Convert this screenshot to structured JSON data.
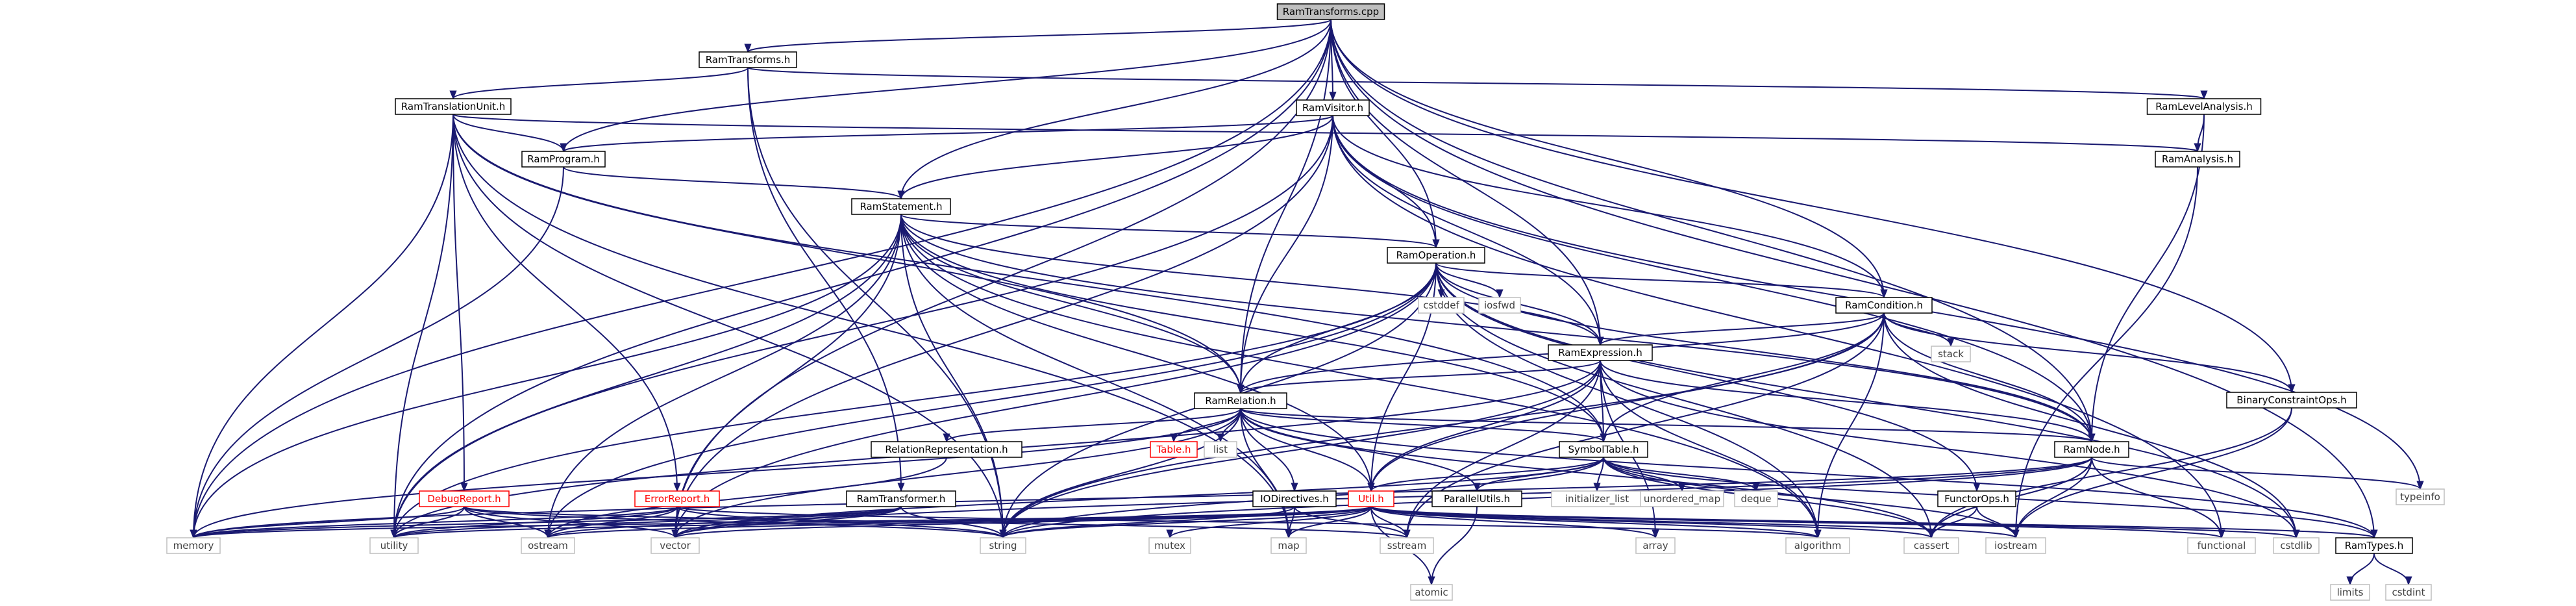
{
  "diagram": {
    "colors": {
      "edge": "#191970",
      "root_fill": "#bfbfbf",
      "doc_border": "#000000",
      "missing_border": "#ff0000",
      "system_border": "#bfbfbf"
    },
    "nodes": [
      {
        "id": "root",
        "label": "RamTransforms.cpp",
        "kind": "root"
      },
      {
        "id": "ramtransforms_h",
        "label": "RamTransforms.h",
        "kind": "doc"
      },
      {
        "id": "ramtranslationunit",
        "label": "RamTranslationUnit.h",
        "kind": "doc"
      },
      {
        "id": "ramvisitor",
        "label": "RamVisitor.h",
        "kind": "doc"
      },
      {
        "id": "ramlevelanalysis",
        "label": "RamLevelAnalysis.h",
        "kind": "doc"
      },
      {
        "id": "ramanalysis",
        "label": "RamAnalysis.h",
        "kind": "doc"
      },
      {
        "id": "ramprogram",
        "label": "RamProgram.h",
        "kind": "doc"
      },
      {
        "id": "ramstatement",
        "label": "RamStatement.h",
        "kind": "doc"
      },
      {
        "id": "ramoperation",
        "label": "RamOperation.h",
        "kind": "doc"
      },
      {
        "id": "cstddef",
        "label": "cstddef",
        "kind": "sys"
      },
      {
        "id": "iosfwd",
        "label": "iosfwd",
        "kind": "sys"
      },
      {
        "id": "ramcondition",
        "label": "RamCondition.h",
        "kind": "doc"
      },
      {
        "id": "stack",
        "label": "stack",
        "kind": "sys"
      },
      {
        "id": "ramexpression",
        "label": "RamExpression.h",
        "kind": "doc"
      },
      {
        "id": "binaryconstraintops",
        "label": "BinaryConstraintOps.h",
        "kind": "doc"
      },
      {
        "id": "ramrelation",
        "label": "RamRelation.h",
        "kind": "doc"
      },
      {
        "id": "symboltable",
        "label": "SymbolTable.h",
        "kind": "doc"
      },
      {
        "id": "ramnode",
        "label": "RamNode.h",
        "kind": "doc"
      },
      {
        "id": "typeinfo",
        "label": "typeinfo",
        "kind": "sys"
      },
      {
        "id": "relationrep",
        "label": "RelationRepresentation.h",
        "kind": "doc"
      },
      {
        "id": "table_h",
        "label": "Table.h",
        "kind": "red"
      },
      {
        "id": "list",
        "label": "list",
        "kind": "sys"
      },
      {
        "id": "iodirectives",
        "label": "IODirectives.h",
        "kind": "doc"
      },
      {
        "id": "util",
        "label": "Util.h",
        "kind": "red"
      },
      {
        "id": "parallelutils",
        "label": "ParallelUtils.h",
        "kind": "doc"
      },
      {
        "id": "initializer_list",
        "label": "initializer_list",
        "kind": "sys"
      },
      {
        "id": "unordered_map",
        "label": "unordered_map",
        "kind": "sys"
      },
      {
        "id": "deque",
        "label": "deque",
        "kind": "sys"
      },
      {
        "id": "functorops",
        "label": "FunctorOps.h",
        "kind": "doc"
      },
      {
        "id": "debugreport",
        "label": "DebugReport.h",
        "kind": "red"
      },
      {
        "id": "errorreport",
        "label": "ErrorReport.h",
        "kind": "red"
      },
      {
        "id": "ramtransformer",
        "label": "RamTransformer.h",
        "kind": "doc"
      },
      {
        "id": "ramtypes",
        "label": "RamTypes.h",
        "kind": "doc"
      },
      {
        "id": "limits",
        "label": "limits",
        "kind": "sys"
      },
      {
        "id": "cstdint",
        "label": "cstdint",
        "kind": "sys"
      },
      {
        "id": "memory",
        "label": "memory",
        "kind": "sys"
      },
      {
        "id": "utility",
        "label": "utility",
        "kind": "sys"
      },
      {
        "id": "ostream",
        "label": "ostream",
        "kind": "sys"
      },
      {
        "id": "vector",
        "label": "vector",
        "kind": "sys"
      },
      {
        "id": "string",
        "label": "string",
        "kind": "sys"
      },
      {
        "id": "mutex",
        "label": "mutex",
        "kind": "sys"
      },
      {
        "id": "map",
        "label": "map",
        "kind": "sys"
      },
      {
        "id": "sstream",
        "label": "sstream",
        "kind": "sys"
      },
      {
        "id": "atomic",
        "label": "atomic",
        "kind": "sys"
      },
      {
        "id": "array",
        "label": "array",
        "kind": "sys"
      },
      {
        "id": "algorithm",
        "label": "algorithm",
        "kind": "sys"
      },
      {
        "id": "cassert",
        "label": "cassert",
        "kind": "sys"
      },
      {
        "id": "iostream",
        "label": "iostream",
        "kind": "sys"
      },
      {
        "id": "functional",
        "label": "functional",
        "kind": "sys"
      },
      {
        "id": "cstdlib",
        "label": "cstdlib",
        "kind": "sys"
      }
    ],
    "edges": [
      [
        "root",
        "ramtransforms_h"
      ],
      [
        "root",
        "ramvisitor"
      ],
      [
        "root",
        "ramprogram"
      ],
      [
        "root",
        "ramstatement"
      ],
      [
        "root",
        "ramoperation"
      ],
      [
        "root",
        "ramcondition"
      ],
      [
        "root",
        "ramexpression"
      ],
      [
        "root",
        "ramrelation"
      ],
      [
        "root",
        "binaryconstraintops"
      ],
      [
        "root",
        "ramnode"
      ],
      [
        "root",
        "ramtypes"
      ],
      [
        "root",
        "utility"
      ],
      [
        "root",
        "vector"
      ],
      [
        "root",
        "memory"
      ],
      [
        "ramtransforms_h",
        "ramtranslationunit"
      ],
      [
        "ramtransforms_h",
        "ramlevelanalysis"
      ],
      [
        "ramtransforms_h",
        "ramtransformer"
      ],
      [
        "ramtransforms_h",
        "string"
      ],
      [
        "ramtranslationunit",
        "ramanalysis"
      ],
      [
        "ramtranslationunit",
        "ramprogram"
      ],
      [
        "ramtranslationunit",
        "debugreport"
      ],
      [
        "ramtranslationunit",
        "errorreport"
      ],
      [
        "ramtranslationunit",
        "symboltable"
      ],
      [
        "ramtranslationunit",
        "ramrelation"
      ],
      [
        "ramtranslationunit",
        "map"
      ],
      [
        "ramtranslationunit",
        "memory"
      ],
      [
        "ramtranslationunit",
        "string"
      ],
      [
        "ramtranslationunit",
        "utility"
      ],
      [
        "ramlevelanalysis",
        "ramanalysis"
      ],
      [
        "ramlevelanalysis",
        "ramnode"
      ],
      [
        "ramanalysis",
        "iostream"
      ],
      [
        "ramvisitor",
        "ramprogram"
      ],
      [
        "ramvisitor",
        "ramstatement"
      ],
      [
        "ramvisitor",
        "ramoperation"
      ],
      [
        "ramvisitor",
        "ramcondition"
      ],
      [
        "ramvisitor",
        "ramexpression"
      ],
      [
        "ramvisitor",
        "ramrelation"
      ],
      [
        "ramvisitor",
        "ramnode"
      ],
      [
        "ramvisitor",
        "typeinfo"
      ],
      [
        "ramvisitor",
        "vector"
      ],
      [
        "ramvisitor",
        "functional"
      ],
      [
        "ramvisitor",
        "utility"
      ],
      [
        "ramprogram",
        "ramstatement"
      ],
      [
        "ramprogram",
        "memory"
      ],
      [
        "ramstatement",
        "ramoperation"
      ],
      [
        "ramstatement",
        "ramrelation"
      ],
      [
        "ramstatement",
        "ramexpression"
      ],
      [
        "ramstatement",
        "ramnode"
      ],
      [
        "ramstatement",
        "symboltable"
      ],
      [
        "ramstatement",
        "util"
      ],
      [
        "ramstatement",
        "algorithm"
      ],
      [
        "ramstatement",
        "memory"
      ],
      [
        "ramstatement",
        "ostream"
      ],
      [
        "ramstatement",
        "string"
      ],
      [
        "ramstatement",
        "vector"
      ],
      [
        "ramstatement",
        "utility"
      ],
      [
        "ramstatement",
        "map"
      ],
      [
        "ramoperation",
        "cstddef"
      ],
      [
        "ramoperation",
        "iosfwd"
      ],
      [
        "ramoperation",
        "ramcondition"
      ],
      [
        "ramoperation",
        "ramexpression"
      ],
      [
        "ramoperation",
        "ramrelation"
      ],
      [
        "ramoperation",
        "ramnode"
      ],
      [
        "ramoperation",
        "util"
      ],
      [
        "ramoperation",
        "functorops"
      ],
      [
        "ramoperation",
        "algorithm"
      ],
      [
        "ramoperation",
        "cassert"
      ],
      [
        "ramoperation",
        "cstdlib"
      ],
      [
        "ramoperation",
        "string"
      ],
      [
        "ramoperation",
        "vector"
      ],
      [
        "ramoperation",
        "ostream"
      ],
      [
        "ramoperation",
        "utility"
      ],
      [
        "ramcondition",
        "stack"
      ],
      [
        "ramcondition",
        "ramexpression"
      ],
      [
        "ramcondition",
        "binaryconstraintops"
      ],
      [
        "ramcondition",
        "ramrelation"
      ],
      [
        "ramcondition",
        "ramnode"
      ],
      [
        "ramcondition",
        "symboltable"
      ],
      [
        "ramcondition",
        "util"
      ],
      [
        "ramcondition",
        "algorithm"
      ],
      [
        "ramcondition",
        "sstream"
      ],
      [
        "ramcondition",
        "string"
      ],
      [
        "ramcondition",
        "cstdlib"
      ],
      [
        "ramexpression",
        "ramrelation"
      ],
      [
        "ramexpression",
        "ramnode"
      ],
      [
        "ramexpression",
        "symboltable"
      ],
      [
        "ramexpression",
        "util"
      ],
      [
        "ramexpression",
        "array"
      ],
      [
        "ramexpression",
        "algorithm"
      ],
      [
        "ramexpression",
        "sstream"
      ],
      [
        "ramexpression",
        "string"
      ],
      [
        "ramexpression",
        "utility"
      ],
      [
        "ramexpression",
        "cstdlib"
      ],
      [
        "binaryconstraintops",
        "cassert"
      ],
      [
        "binaryconstraintops",
        "iostream"
      ],
      [
        "ramrelation",
        "ramnode"
      ],
      [
        "ramrelation",
        "relationrep"
      ],
      [
        "ramrelation",
        "table_h"
      ],
      [
        "ramrelation",
        "list"
      ],
      [
        "ramrelation",
        "iodirectives"
      ],
      [
        "ramrelation",
        "util"
      ],
      [
        "ramrelation",
        "parallelutils"
      ],
      [
        "ramrelation",
        "symboltable"
      ],
      [
        "ramrelation",
        "map"
      ],
      [
        "ramrelation",
        "string"
      ],
      [
        "ramrelation",
        "vector"
      ],
      [
        "ramrelation",
        "memory"
      ],
      [
        "ramrelation",
        "ramtypes"
      ],
      [
        "ramrelation",
        "cassert"
      ],
      [
        "symboltable",
        "util"
      ],
      [
        "symboltable",
        "parallelutils"
      ],
      [
        "symboltable",
        "initializer_list"
      ],
      [
        "symboltable",
        "unordered_map"
      ],
      [
        "symboltable",
        "deque"
      ],
      [
        "symboltable",
        "iostream"
      ],
      [
        "symboltable",
        "cassert"
      ],
      [
        "symboltable",
        "string"
      ],
      [
        "symboltable",
        "vector"
      ],
      [
        "symboltable",
        "ramtypes"
      ],
      [
        "ramnode",
        "typeinfo"
      ],
      [
        "ramnode",
        "cassert"
      ],
      [
        "ramnode",
        "iostream"
      ],
      [
        "ramnode",
        "functional"
      ],
      [
        "ramnode",
        "vector"
      ],
      [
        "ramnode",
        "memory"
      ],
      [
        "ramnode",
        "string"
      ],
      [
        "relationrep",
        "ostream"
      ],
      [
        "iodirectives",
        "map"
      ],
      [
        "iodirectives",
        "sstream"
      ],
      [
        "iodirectives",
        "string"
      ],
      [
        "util",
        "mutex"
      ],
      [
        "util",
        "map"
      ],
      [
        "util",
        "sstream"
      ],
      [
        "util",
        "atomic"
      ],
      [
        "util",
        "array"
      ],
      [
        "util",
        "algorithm"
      ],
      [
        "util",
        "cassert"
      ],
      [
        "util",
        "iostream"
      ],
      [
        "util",
        "functional"
      ],
      [
        "util",
        "cstdlib"
      ],
      [
        "util",
        "ramtypes"
      ],
      [
        "util",
        "memory"
      ],
      [
        "util",
        "utility"
      ],
      [
        "util",
        "ostream"
      ],
      [
        "util",
        "vector"
      ],
      [
        "util",
        "string"
      ],
      [
        "parallelutils",
        "atomic"
      ],
      [
        "functorops",
        "cassert"
      ],
      [
        "functorops",
        "iostream"
      ],
      [
        "debugreport",
        "memory"
      ],
      [
        "debugreport",
        "ostream"
      ],
      [
        "debugreport",
        "sstream"
      ],
      [
        "debugreport",
        "string"
      ],
      [
        "debugreport",
        "vector"
      ],
      [
        "debugreport",
        "utility"
      ],
      [
        "errorreport",
        "memory"
      ],
      [
        "errorreport",
        "ostream"
      ],
      [
        "errorreport",
        "vector"
      ],
      [
        "errorreport",
        "string"
      ],
      [
        "errorreport",
        "algorithm"
      ],
      [
        "errorreport",
        "utility"
      ],
      [
        "ramtransformer",
        "memory"
      ],
      [
        "ramtransformer",
        "string"
      ],
      [
        "ramtransformer",
        "vector"
      ],
      [
        "ramtransformer",
        "utility"
      ],
      [
        "ramtransformer",
        "ostream"
      ],
      [
        "ramtypes",
        "limits"
      ],
      [
        "ramtypes",
        "cstdint"
      ]
    ]
  }
}
